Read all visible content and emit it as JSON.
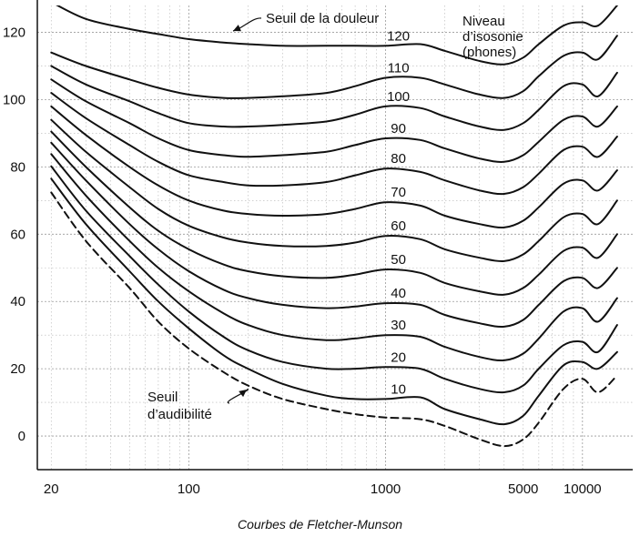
{
  "chart_data": {
    "type": "line",
    "title": "",
    "caption": "Courbes de Fletcher-Munson",
    "xlabel": "",
    "ylabel": "",
    "xscale": "log",
    "xlim": [
      17,
      18000
    ],
    "ylim": [
      -10,
      128
    ],
    "grid": true,
    "x_ticks": [
      {
        "value": 20,
        "label": "20"
      },
      {
        "value": 100,
        "label": "100"
      },
      {
        "value": 1000,
        "label": "1000"
      },
      {
        "value": 5000,
        "label": "5000"
      },
      {
        "value": 10000,
        "label": "10000"
      }
    ],
    "y_ticks": [
      {
        "value": 0,
        "label": "0"
      },
      {
        "value": 20,
        "label": "20"
      },
      {
        "value": 40,
        "label": "40"
      },
      {
        "value": 60,
        "label": "60"
      },
      {
        "value": 80,
        "label": "80"
      },
      {
        "value": 100,
        "label": "100"
      },
      {
        "value": 120,
        "label": "120"
      }
    ],
    "x": [
      20,
      30,
      50,
      70,
      100,
      150,
      200,
      300,
      500,
      700,
      1000,
      1500,
      2000,
      3000,
      4000,
      5000,
      6000,
      8000,
      10000,
      12000,
      15000
    ],
    "series": [
      {
        "label": "",
        "dashed": true,
        "values": [
          72.4,
          58,
          44,
          34,
          26,
          19,
          15,
          11,
          8,
          6.5,
          5.5,
          5,
          3,
          -1,
          -3,
          -1,
          4,
          14,
          17,
          13,
          18
        ]
      },
      {
        "label": "10",
        "values": [
          76.5,
          63,
          49,
          40,
          32,
          24,
          20,
          15.5,
          12,
          11,
          11,
          11.5,
          8,
          5,
          3.5,
          6,
          12,
          21,
          22,
          20,
          25
        ]
      },
      {
        "label": "20",
        "values": [
          80.2,
          67,
          53.5,
          45,
          37,
          29.5,
          25.5,
          22,
          20,
          20,
          20.5,
          20,
          17,
          14,
          13,
          15,
          20,
          27,
          28,
          25,
          33
        ]
      },
      {
        "label": "30",
        "values": [
          83.8,
          71.5,
          58,
          50,
          43,
          36.5,
          33,
          30,
          28.5,
          29,
          30,
          29.5,
          26.5,
          23.5,
          22.5,
          24.5,
          29,
          37,
          38,
          34,
          41
        ]
      },
      {
        "label": "40",
        "values": [
          87.2,
          76,
          63,
          55.5,
          49,
          43.5,
          41,
          39,
          38,
          38.5,
          39.5,
          39,
          36,
          33.5,
          32.5,
          34.5,
          39,
          46,
          47,
          44,
          50
        ]
      },
      {
        "label": "50",
        "values": [
          90.5,
          80,
          68,
          61,
          55.5,
          51,
          49,
          47.5,
          47,
          48,
          49.5,
          48.5,
          45.5,
          43,
          42,
          44,
          48,
          55,
          56,
          53,
          60
        ]
      },
      {
        "label": "60",
        "values": [
          94,
          84.5,
          74,
          67.5,
          62.5,
          59,
          57.5,
          56.5,
          56.5,
          57.5,
          59.5,
          58.5,
          55.5,
          53,
          52,
          54,
          58,
          65,
          66,
          63,
          70
        ]
      },
      {
        "label": "70",
        "values": [
          98,
          89.5,
          80,
          74.5,
          70,
          67,
          66,
          65.5,
          66,
          67.5,
          69.5,
          68.5,
          65.5,
          63,
          62,
          64,
          68,
          75,
          76,
          73,
          79
        ]
      },
      {
        "label": "80",
        "values": [
          102,
          94.5,
          86.5,
          81.5,
          77.5,
          75.5,
          74.5,
          74.5,
          75.5,
          77.5,
          79.5,
          78.5,
          76,
          73,
          72,
          74,
          78,
          85,
          86,
          83,
          89
        ]
      },
      {
        "label": "90",
        "values": [
          106,
          99.5,
          93,
          88.5,
          85,
          83.5,
          83,
          83.5,
          84.5,
          86.5,
          88.5,
          88,
          85.5,
          82.5,
          81.5,
          83.5,
          87.5,
          94,
          95,
          92,
          98
        ]
      },
      {
        "label": "100",
        "values": [
          110,
          104.5,
          99.5,
          96,
          93,
          92,
          92,
          92.5,
          93.5,
          95.5,
          98,
          97.5,
          95,
          92,
          91,
          93,
          97,
          104,
          104.5,
          101,
          108
        ]
      },
      {
        "label": "110",
        "values": [
          114,
          110,
          106,
          103.5,
          101.5,
          100.5,
          100.5,
          101,
          102,
          104,
          106.5,
          106.5,
          104.5,
          101.5,
          100.5,
          102.5,
          107,
          113,
          114,
          112,
          119
        ]
      },
      {
        "label": "120",
        "values": [
          129,
          124,
          121,
          119.5,
          118,
          117,
          116.5,
          116,
          116,
          116,
          116,
          116.5,
          114.5,
          111.5,
          110.5,
          112.5,
          116.5,
          122,
          123,
          122,
          128
        ]
      }
    ],
    "annotations": [
      {
        "name": "pain-threshold",
        "lines": [
          "Seuil de la douleur"
        ]
      },
      {
        "name": "audibility-threshold",
        "lines": [
          "Seuil",
          "d’audibilité"
        ]
      },
      {
        "name": "isophonic-level",
        "lines": [
          "Niveau",
          "d’isosonie",
          "(phones)"
        ]
      }
    ]
  }
}
